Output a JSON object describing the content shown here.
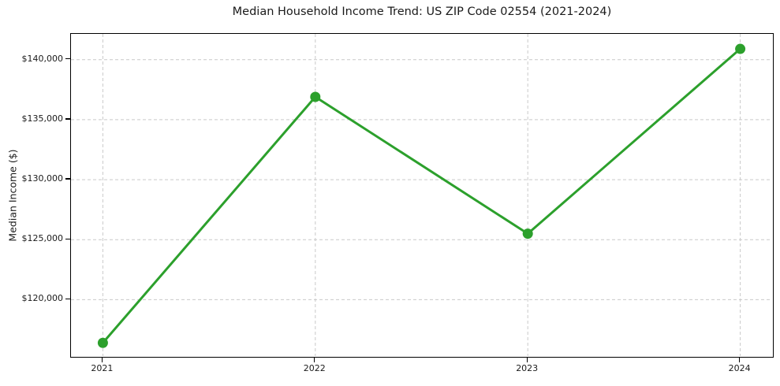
{
  "chart": {
    "title": "Median Household Income Trend: US ZIP Code 02554 (2021-2024)",
    "ylabel": "Median Income ($)"
  },
  "chart_data": {
    "type": "line",
    "title": "Median Household Income Trend: US ZIP Code 02554 (2021-2024)",
    "xlabel": "",
    "ylabel": "Median Income ($)",
    "x": [
      2021,
      2022,
      2023,
      2024
    ],
    "x_tick_labels": [
      "2021",
      "2022",
      "2023",
      "2024"
    ],
    "series": [
      {
        "name": "Median Household Income",
        "values": [
          116400,
          136900,
          125500,
          140900
        ]
      }
    ],
    "y_ticks": [
      {
        "value": 120000,
        "label": "$120,000"
      },
      {
        "value": 125000,
        "label": "$125,000"
      },
      {
        "value": 130000,
        "label": "$130,000"
      },
      {
        "value": 135000,
        "label": "$135,000"
      },
      {
        "value": 140000,
        "label": "$140,000"
      }
    ],
    "xlim": [
      2020.85,
      2024.15
    ],
    "ylim": [
      115300,
      142150
    ],
    "grid": true,
    "grid_line_style": "dashed",
    "legend_position": "none",
    "colors": {
      "line": "#2ca02c",
      "marker": "#2ca02c",
      "grid": "#c9c9c9",
      "spine": "#000000",
      "background": "#ffffff",
      "text": "#1a1a1a"
    },
    "line_width": 3,
    "marker_radius": 6.5
  }
}
